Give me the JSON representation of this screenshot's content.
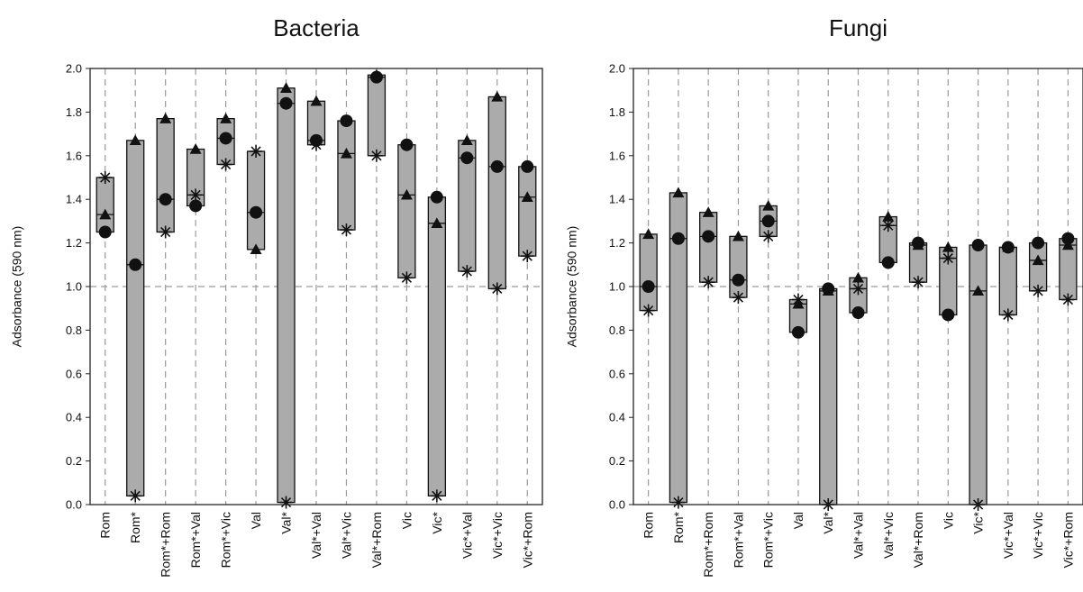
{
  "chart_data": [
    {
      "type": "range-bar",
      "title": "Bacteria",
      "ylabel": "Adsorbance (590 nm)",
      "ylim": [
        0,
        2.0
      ],
      "yticks": [
        "0.0",
        "0.2",
        "0.4",
        "0.6",
        "0.8",
        "1.0",
        "1.2",
        "1.4",
        "1.6",
        "1.8",
        "2.0"
      ],
      "reference_line": 1.0,
      "categories": [
        "Rom",
        "Rom*",
        "Rom*+Rom",
        "Rom*+Val",
        "Rom*+Vic",
        "Val",
        "Val*",
        "Val*+Val",
        "Val*+Vic",
        "Val*+Rom",
        "Vic",
        "Vic*",
        "Vic*+Val",
        "Vic*+Vic",
        "Vic*+Rom"
      ],
      "series": [
        {
          "marker": "circle",
          "values": [
            1.25,
            1.1,
            1.4,
            1.37,
            1.68,
            1.34,
            1.84,
            1.67,
            1.76,
            1.96,
            1.65,
            1.41,
            1.59,
            1.55,
            1.55
          ]
        },
        {
          "marker": "triangle",
          "values": [
            1.33,
            1.67,
            1.77,
            1.63,
            1.77,
            1.17,
            1.91,
            1.85,
            1.61,
            1.97,
            1.42,
            1.29,
            1.67,
            1.87,
            1.41
          ]
        },
        {
          "marker": "asterisk",
          "values": [
            1.5,
            0.04,
            1.25,
            1.42,
            1.56,
            1.62,
            0.01,
            1.65,
            1.26,
            1.6,
            1.04,
            0.04,
            1.07,
            0.99,
            1.14
          ]
        }
      ]
    },
    {
      "type": "range-bar",
      "title": "Fungi",
      "ylabel": "Adsorbance (590 nm)",
      "ylim": [
        0,
        2.0
      ],
      "yticks": [
        "0.0",
        "0.2",
        "0.4",
        "0.6",
        "0.8",
        "1.0",
        "1.2",
        "1.4",
        "1.6",
        "1.8",
        "2.0"
      ],
      "reference_line": 1.0,
      "categories": [
        "Rom",
        "Rom*",
        "Rom*+Rom",
        "Rom*+Val",
        "Rom*+Vic",
        "Val",
        "Val*",
        "Val*+Val",
        "Val*+Vic",
        "Val*+Rom",
        "Vic",
        "Vic*",
        "Vic*+Val",
        "Vic*+Vic",
        "Vic*+Rom"
      ],
      "series": [
        {
          "marker": "circle",
          "values": [
            1.0,
            1.22,
            1.23,
            1.03,
            1.3,
            0.79,
            0.99,
            0.88,
            1.11,
            1.2,
            0.87,
            1.19,
            1.18,
            1.2,
            1.22
          ]
        },
        {
          "marker": "triangle",
          "values": [
            1.24,
            1.43,
            1.34,
            1.23,
            1.37,
            0.92,
            0.98,
            1.04,
            1.32,
            1.19,
            1.18,
            0.98,
            1.18,
            1.12,
            1.19
          ]
        },
        {
          "marker": "asterisk",
          "values": [
            0.89,
            0.01,
            1.02,
            0.95,
            1.23,
            0.94,
            0.0,
            0.99,
            1.28,
            1.02,
            1.13,
            0.0,
            0.87,
            0.98,
            0.94
          ]
        }
      ]
    }
  ]
}
